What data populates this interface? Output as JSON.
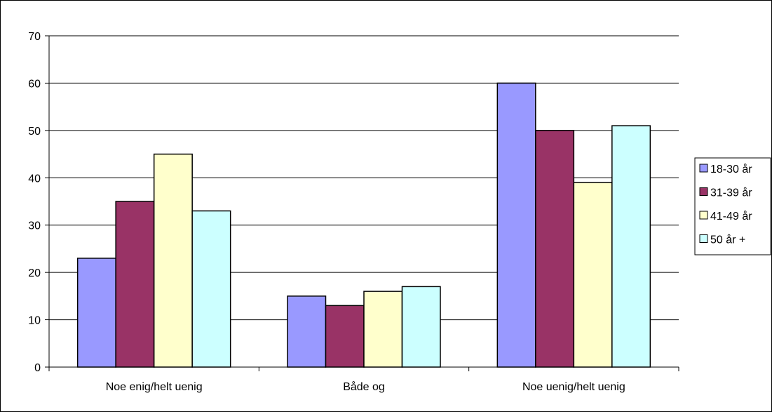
{
  "chart_data": {
    "type": "bar",
    "title": "",
    "xlabel": "",
    "ylabel": "",
    "ylim": [
      0,
      70
    ],
    "yticks": [
      0,
      10,
      20,
      30,
      40,
      50,
      60,
      70
    ],
    "grid": true,
    "legend_position": "right",
    "categories": [
      "Noe enig/helt uenig",
      "Både og",
      "Noe uenig/helt uenig"
    ],
    "series": [
      {
        "name": "18-30 år",
        "color": "#9999ff",
        "values": [
          23,
          15,
          60
        ]
      },
      {
        "name": "31-39 år",
        "color": "#993366",
        "values": [
          35,
          13,
          50
        ]
      },
      {
        "name": "41-49 år",
        "color": "#ffffcc",
        "values": [
          45,
          16,
          39
        ]
      },
      {
        "name": "50 år +",
        "color": "#ccffff",
        "values": [
          33,
          17,
          51
        ]
      }
    ]
  }
}
